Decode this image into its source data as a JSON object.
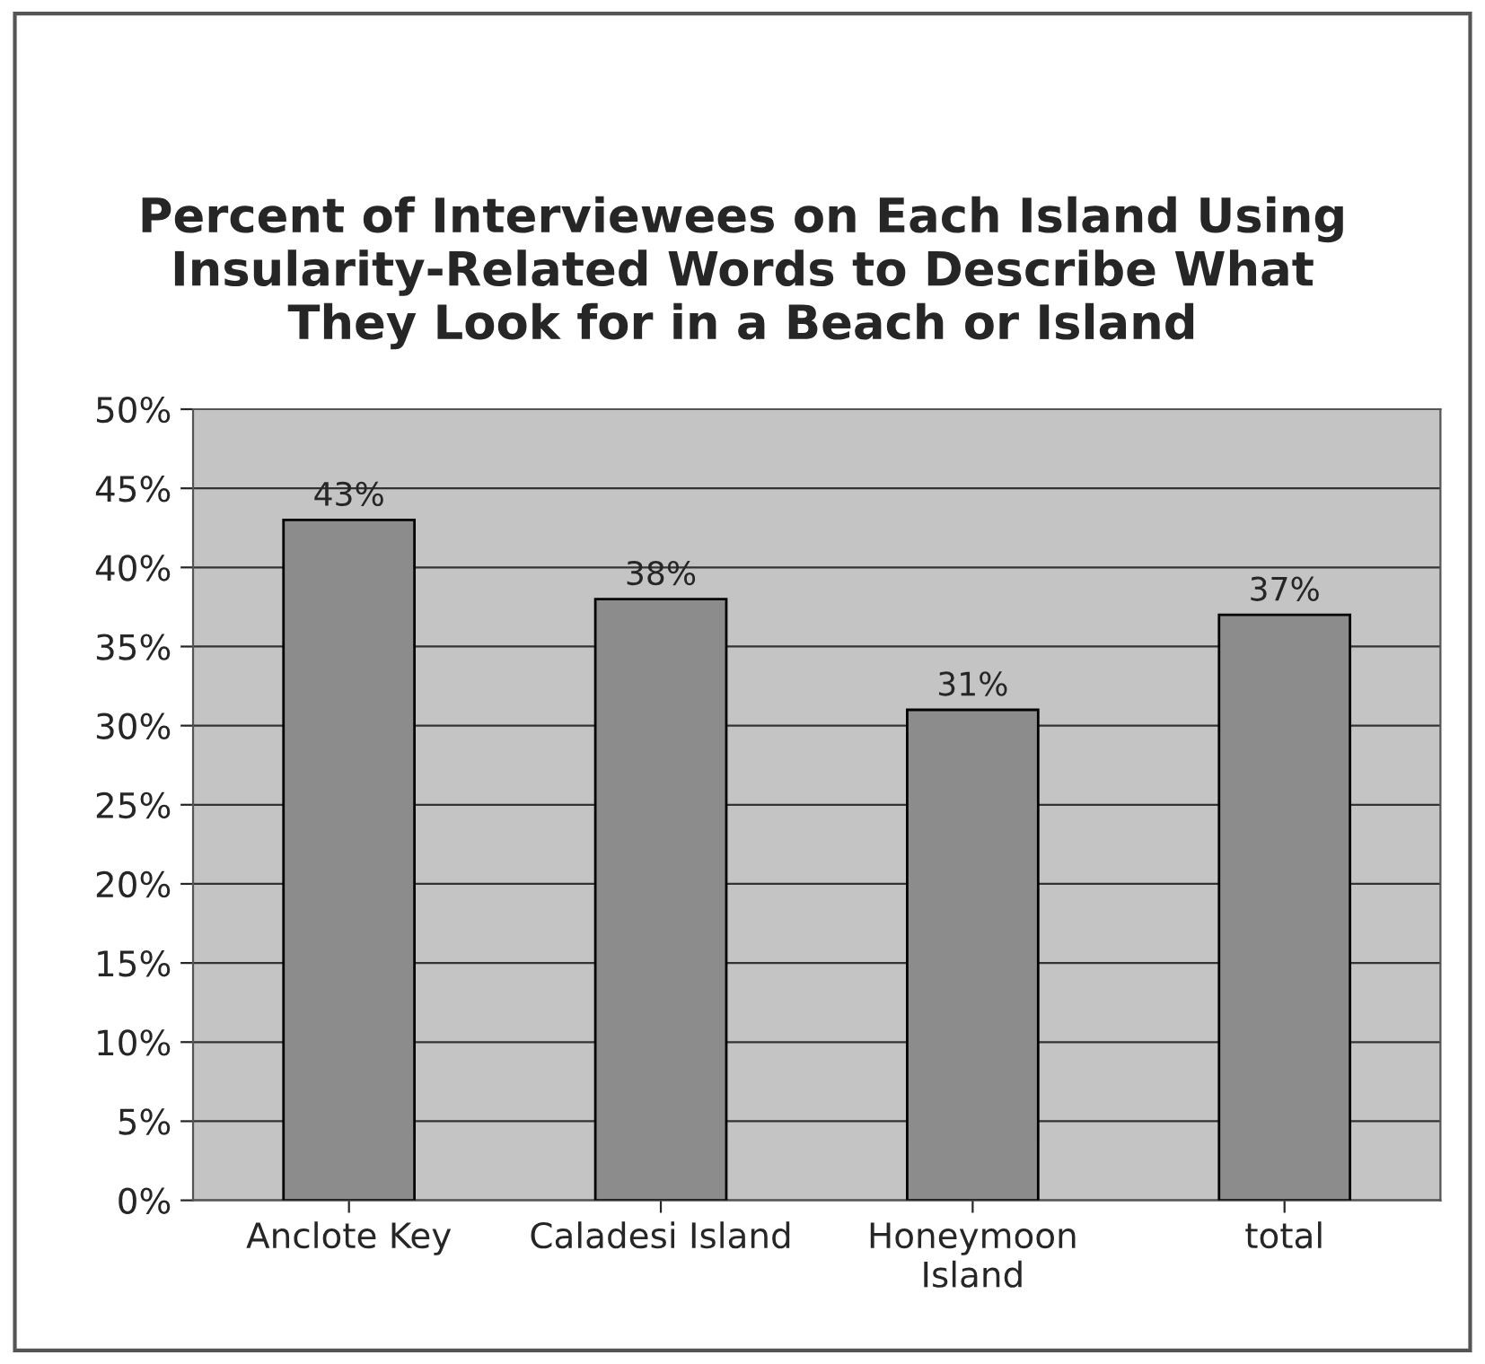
{
  "chart_data": {
    "type": "bar",
    "title": "Percent of Interviewees on Each Island Using Insularity-Related Words to Describe What They Look for in a Beach or Island",
    "categories": [
      "Anclote Key",
      "Caladesi Island",
      "Honeymoon\nIsland",
      "total"
    ],
    "values": [
      43,
      38,
      31,
      37
    ],
    "value_labels": [
      "43%",
      "38%",
      "31%",
      "37%"
    ],
    "color": "#8c8c8c",
    "ylim": [
      0,
      50
    ],
    "yticks": [
      {
        "value": 0,
        "label": "0%"
      },
      {
        "value": 5,
        "label": "5%"
      },
      {
        "value": 10,
        "label": "10%"
      },
      {
        "value": 15,
        "label": "15%"
      },
      {
        "value": 20,
        "label": "20%"
      },
      {
        "value": 25,
        "label": "25%"
      },
      {
        "value": 30,
        "label": "30%"
      },
      {
        "value": 35,
        "label": "35%"
      },
      {
        "value": 40,
        "label": "40%"
      },
      {
        "value": 45,
        "label": "45%"
      },
      {
        "value": 50,
        "label": "50%"
      }
    ],
    "grid": "y"
  }
}
